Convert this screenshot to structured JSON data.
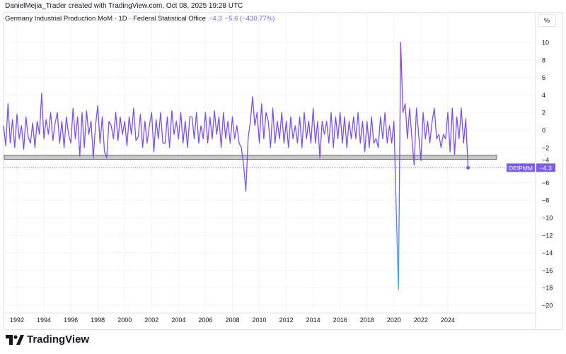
{
  "credit": "DanielMejia_Trader created with TradingView.com, Oct 08, 2025 19:28 UTC",
  "legend": {
    "title": "Germany Industrial Production MoM · 1D · Federal Statistical Office",
    "last": "−4.3",
    "change": "−5.6 (−430.77%)"
  },
  "scale_button": "%",
  "logo": "TradingView",
  "chart_data": {
    "type": "line",
    "series": [
      {
        "symbol": "DEIPMM",
        "last_label": "−4.3",
        "start": "1991-01",
        "step_months": 2,
        "values": [
          0.5,
          -1.8,
          3.0,
          -1.5,
          1.2,
          -2.0,
          1.8,
          -1.0,
          0.5,
          -2.2,
          1.5,
          -0.8,
          -1.5,
          0.8,
          -2.0,
          1.0,
          -0.5,
          4.2,
          -1.0,
          1.2,
          -0.5,
          2.0,
          -1.2,
          0.8,
          2.0,
          -1.5,
          1.0,
          -2.0,
          1.5,
          -0.5,
          -1.5,
          2.5,
          -1.0,
          1.5,
          -3.0,
          2.0,
          -2.0,
          2.2,
          -0.5,
          1.0,
          -3.2,
          0.5,
          2.8,
          -1.5,
          1.5,
          -2.5,
          -3.2,
          1.0,
          0.5,
          -1.0,
          2.0,
          -1.2,
          1.5,
          -0.5,
          1.0,
          -1.8,
          1.5,
          -0.5,
          2.5,
          -1.2,
          -0.8,
          1.8,
          -2.0,
          1.0,
          -1.5,
          0.5,
          2.0,
          -2.5,
          1.2,
          -1.0,
          2.0,
          -1.5,
          -1.5,
          1.5,
          -2.0,
          2.2,
          -0.5,
          1.0,
          -1.0,
          2.0,
          -1.5,
          1.0,
          -2.0,
          1.5,
          1.5,
          -1.0,
          2.0,
          -1.5,
          0.5,
          -1.0,
          2.0,
          -1.5,
          1.5,
          -1.0,
          2.2,
          -0.5,
          1.5,
          -2.0,
          2.0,
          -1.0,
          1.0,
          -1.5,
          1.5,
          -1.0,
          0.5,
          -1.5,
          -2.0,
          -4.0,
          -7.0,
          -1.0,
          1.0,
          3.8,
          0.5,
          2.0,
          -1.5,
          3.0,
          -1.0,
          2.0,
          1.0,
          -2.0,
          2.5,
          -1.5,
          1.0,
          -1.0,
          2.0,
          -1.5,
          1.0,
          -2.0,
          1.5,
          -1.0,
          0.5,
          -1.5,
          1.5,
          -2.0,
          2.0,
          -1.0,
          1.0,
          -1.5,
          2.5,
          -1.5,
          1.0,
          -3.2,
          1.0,
          -0.5,
          1.0,
          -1.5,
          2.0,
          -2.0,
          1.5,
          -1.0,
          2.0,
          -1.5,
          1.5,
          -2.0,
          1.0,
          -1.0,
          1.5,
          -1.0,
          2.0,
          -1.5,
          1.0,
          -2.5,
          1.0,
          -2.0,
          1.5,
          -1.5,
          -1.0,
          -2.0,
          1.5,
          -1.0,
          2.0,
          -1.5,
          0.5,
          -1.5,
          1.0,
          -9.0,
          -18.2,
          10.0,
          2.0,
          3.0,
          -1.0,
          2.5,
          -1.0,
          -4.0,
          2.5,
          -0.5,
          -3.5,
          2.0,
          -1.0,
          1.0,
          -1.5,
          1.0,
          2.5,
          -1.0,
          -0.5,
          -2.0,
          -0.5,
          -1.0,
          2.0,
          -2.5,
          2.5,
          -2.8,
          1.5,
          -1.0,
          2.5,
          -1.5,
          1.3,
          -4.3
        ]
      }
    ],
    "x_ticks": [
      "1992",
      "1994",
      "1996",
      "1998",
      "2000",
      "2002",
      "2004",
      "2006",
      "2008",
      "2010",
      "2012",
      "2014",
      "2016",
      "2018",
      "2020",
      "2022",
      "2024"
    ],
    "y_ticks": [
      10,
      8,
      6,
      4,
      2,
      0,
      -2,
      -4,
      -6,
      -8,
      -10,
      -12,
      -14,
      -16,
      -18,
      -20
    ],
    "ylim": [
      -21,
      11
    ],
    "horizontal_band": -3.1,
    "grid": true,
    "colors": {
      "line_top": "#b02ce0",
      "line_mid": "#7b4ff0",
      "line_bottom": "#28b4e8",
      "label_bg": "#7b5cf0",
      "band": "#c8c8c8"
    }
  }
}
